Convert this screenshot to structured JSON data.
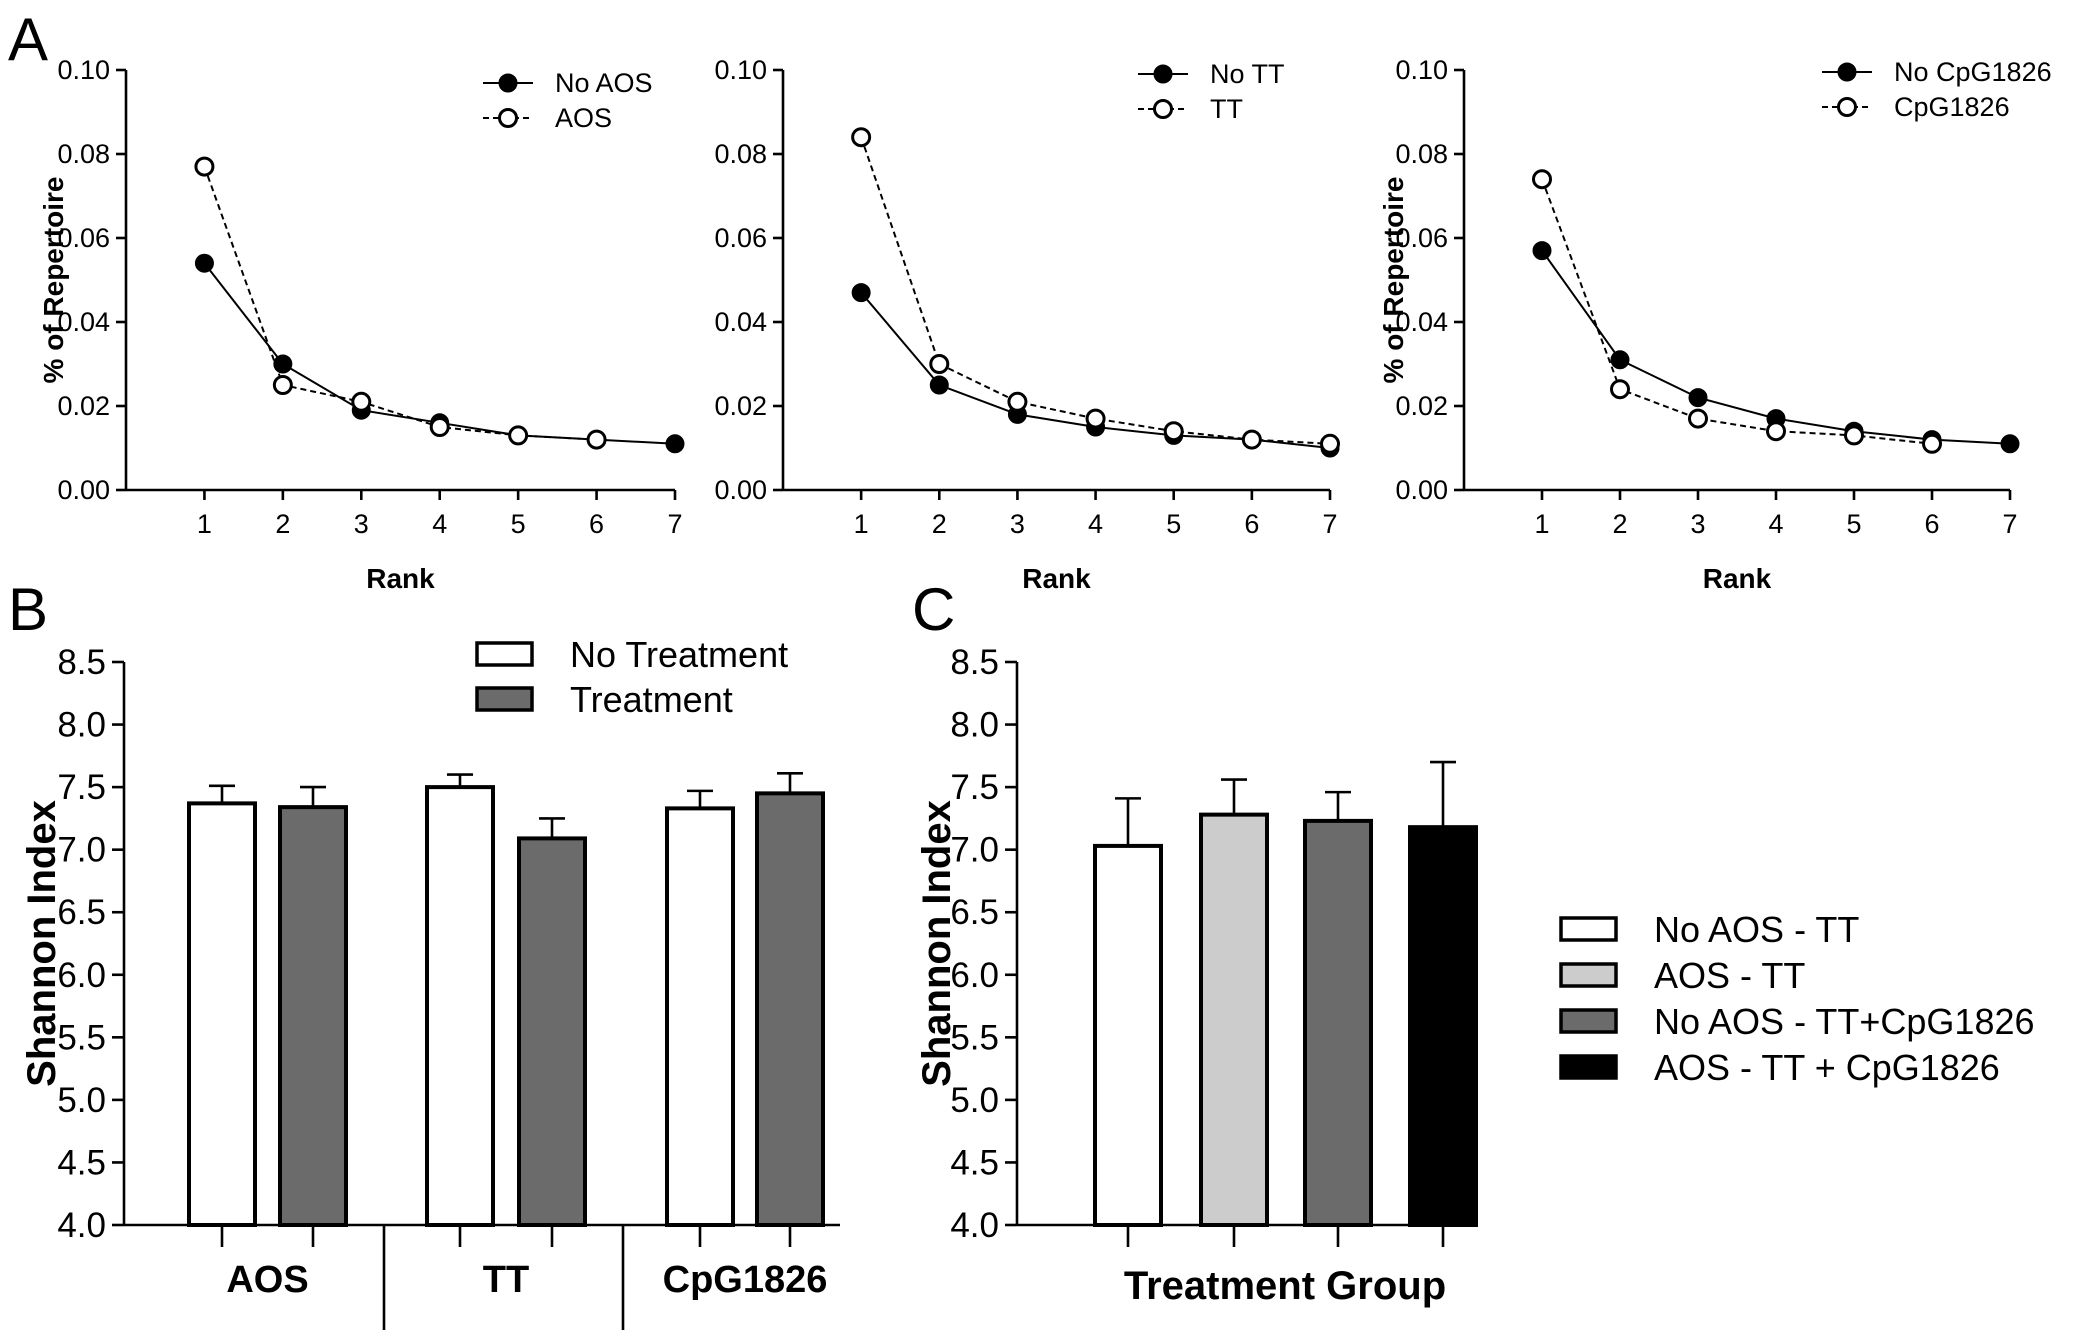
{
  "panel_letters": {
    "a": "A",
    "b": "B",
    "c": "C"
  },
  "chart_data": [
    {
      "type": "line",
      "panel": "A",
      "xlabel": "Rank",
      "ylabel": "% of Repertoire",
      "x": [
        1,
        2,
        3,
        4,
        5,
        6,
        7
      ],
      "xlim": [
        0,
        7
      ],
      "ylim": [
        0,
        0.1
      ],
      "yticks": [
        "0.00",
        "0.02",
        "0.04",
        "0.06",
        "0.08",
        "0.10"
      ],
      "legend_position": "top-right",
      "series": [
        {
          "name": "No AOS",
          "marker": "filled",
          "line": "solid",
          "values": [
            0.054,
            0.03,
            0.019,
            0.016,
            0.013,
            0.012,
            0.011
          ]
        },
        {
          "name": "AOS",
          "marker": "open",
          "line": "dashed",
          "values": [
            0.077,
            0.025,
            0.021,
            0.015,
            0.013,
            0.012,
            null
          ]
        }
      ]
    },
    {
      "type": "line",
      "panel": "A",
      "xlabel": "Rank",
      "ylabel": "",
      "x": [
        1,
        2,
        3,
        4,
        5,
        6,
        7
      ],
      "xlim": [
        0,
        7
      ],
      "ylim": [
        0,
        0.1
      ],
      "yticks": [
        "0.00",
        "0.02",
        "0.04",
        "0.06",
        "0.08",
        "0.10"
      ],
      "legend_position": "top-right",
      "series": [
        {
          "name": "No TT",
          "marker": "filled",
          "line": "solid",
          "values": [
            0.047,
            0.025,
            0.018,
            0.015,
            0.013,
            0.012,
            0.01
          ]
        },
        {
          "name": "TT",
          "marker": "open",
          "line": "dashed",
          "values": [
            0.084,
            0.03,
            0.021,
            0.017,
            0.014,
            0.012,
            0.011
          ]
        }
      ]
    },
    {
      "type": "line",
      "panel": "A",
      "xlabel": "Rank",
      "ylabel": "% of Repertoire",
      "x": [
        1,
        2,
        3,
        4,
        5,
        6,
        7
      ],
      "xlim": [
        0,
        7
      ],
      "ylim": [
        0,
        0.1
      ],
      "yticks": [
        "0.00",
        "0.02",
        "0.04",
        "0.06",
        "0.08",
        "0.10"
      ],
      "legend_position": "top-right",
      "series": [
        {
          "name": "No CpG1826",
          "marker": "filled",
          "line": "solid",
          "values": [
            0.057,
            0.031,
            0.022,
            0.017,
            0.014,
            0.012,
            0.011
          ]
        },
        {
          "name": "CpG1826",
          "marker": "open",
          "line": "dashed",
          "values": [
            0.074,
            0.024,
            0.017,
            0.014,
            0.013,
            0.011,
            null
          ]
        }
      ]
    },
    {
      "type": "bar",
      "panel": "B",
      "ylabel": "Shannon Index",
      "categories": [
        "AOS",
        "TT",
        "CpG1826"
      ],
      "ylim": [
        4.0,
        8.5
      ],
      "yticks": [
        "4.0",
        "4.5",
        "5.0",
        "5.5",
        "6.0",
        "6.5",
        "7.0",
        "7.5",
        "8.0",
        "8.5"
      ],
      "legend_position": "top-right",
      "series": [
        {
          "name": "No  Treatment",
          "color": "#ffffff",
          "values": [
            7.37,
            7.5,
            7.33
          ],
          "errors": [
            0.14,
            0.1,
            0.14
          ]
        },
        {
          "name": "Treatment",
          "color": "#6b6b6b",
          "values": [
            7.34,
            7.09,
            7.45
          ],
          "errors": [
            0.16,
            0.16,
            0.16
          ]
        }
      ]
    },
    {
      "type": "bar",
      "panel": "C",
      "xlabel": "Treatment  Group",
      "ylabel": "Shannon Index",
      "ylim": [
        4.0,
        8.5
      ],
      "yticks": [
        "4.0",
        "4.5",
        "5.0",
        "5.5",
        "6.0",
        "6.5",
        "7.0",
        "7.5",
        "8.0",
        "8.5"
      ],
      "legend_position": "right",
      "series": [
        {
          "name": "No AOS - TT",
          "color": "#ffffff",
          "value": 7.03,
          "error": 0.38
        },
        {
          "name": "AOS - TT",
          "color": "#cccccc",
          "value": 7.28,
          "error": 0.28
        },
        {
          "name": "No AOS - TT+CpG1826",
          "color": "#6b6b6b",
          "value": 7.23,
          "error": 0.23
        },
        {
          "name": "AOS - TT + CpG1826",
          "color": "#000000",
          "value": 7.18,
          "error": 0.52
        }
      ]
    }
  ]
}
